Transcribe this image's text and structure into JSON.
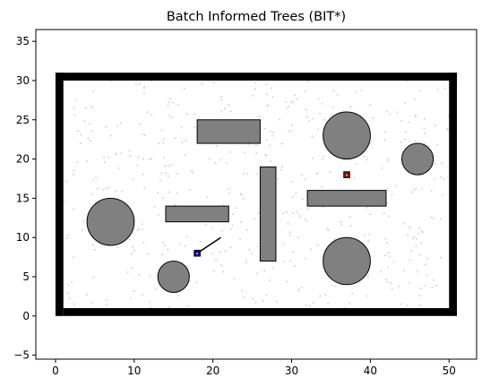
{
  "chart_data": {
    "type": "scatter",
    "title": "Batch Informed Trees (BIT*)",
    "xlabel": "",
    "ylabel": "",
    "xlim": [
      -2.5,
      53.5
    ],
    "ylim": [
      -5.5,
      36.5
    ],
    "xticks": [
      0,
      10,
      20,
      30,
      40,
      50
    ],
    "yticks": [
      -5,
      0,
      5,
      10,
      15,
      20,
      25,
      30,
      35
    ],
    "grid": false,
    "colors": {
      "boundary": "#000000",
      "obstacle_fill": "#808080",
      "obstacle_edge": "#000000",
      "samples": "#d3d3d3",
      "start": "#000080",
      "goal": "#8b0000",
      "tree": "#000000"
    },
    "boundary_rects": [
      {
        "x": 0,
        "y": 0,
        "w": 1,
        "h": 31
      },
      {
        "x": 0,
        "y": 30,
        "w": 51,
        "h": 1
      },
      {
        "x": 1,
        "y": 0,
        "w": 50,
        "h": 1
      },
      {
        "x": 50,
        "y": 1,
        "w": 1,
        "h": 30
      }
    ],
    "rect_obstacles": [
      {
        "x": 18,
        "y": 22,
        "w": 8,
        "h": 3
      },
      {
        "x": 26,
        "y": 7,
        "w": 2,
        "h": 12
      },
      {
        "x": 32,
        "y": 14,
        "w": 10,
        "h": 2
      },
      {
        "x": 14,
        "y": 12,
        "w": 8,
        "h": 2
      }
    ],
    "circle_obstacles": [
      {
        "cx": 7,
        "cy": 12,
        "r": 3
      },
      {
        "cx": 46,
        "cy": 20,
        "r": 2
      },
      {
        "cx": 15,
        "cy": 5,
        "r": 2
      },
      {
        "cx": 37,
        "cy": 7,
        "r": 3
      },
      {
        "cx": 37,
        "cy": 23,
        "r": 3
      }
    ],
    "start": {
      "x": 18,
      "y": 8
    },
    "goal": {
      "x": 37,
      "y": 18
    },
    "tree_edges": [
      [
        [
          18,
          8
        ],
        [
          21,
          10
        ]
      ]
    ],
    "samples": {
      "count": 450,
      "x_range": [
        1,
        50
      ],
      "y_range": [
        1,
        30
      ]
    }
  }
}
